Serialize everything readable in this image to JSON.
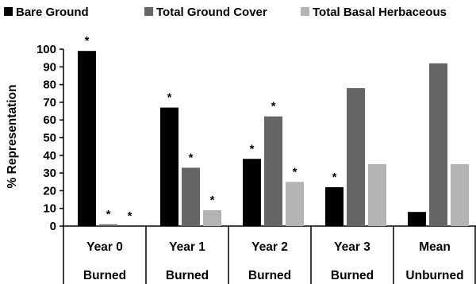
{
  "chart_data": {
    "type": "bar",
    "title": "",
    "xlabel": "",
    "ylabel": "% Representation",
    "ylim": [
      0,
      100
    ],
    "yticks": [
      0,
      10,
      20,
      30,
      40,
      50,
      60,
      70,
      80,
      90,
      100
    ],
    "grid": false,
    "legend_position": "top",
    "categories": [
      [
        "Year 0",
        "Burned"
      ],
      [
        "Year 1",
        "Burned"
      ],
      [
        "Year 2",
        "Burned"
      ],
      [
        "Year 3",
        "Burned"
      ],
      [
        "Mean",
        "Unburned"
      ]
    ],
    "series": [
      {
        "name": "Bare Ground",
        "color": "#000000",
        "values": [
          99,
          67,
          38,
          22,
          8
        ],
        "significant": [
          true,
          true,
          true,
          true,
          false
        ]
      },
      {
        "name": "Total Ground Cover",
        "color": "#666666",
        "values": [
          1,
          33,
          62,
          78,
          92
        ],
        "significant": [
          true,
          true,
          true,
          false,
          false
        ]
      },
      {
        "name": "Total Basal Herbaceous",
        "color": "#b3b3b3",
        "values": [
          0,
          9,
          25,
          35,
          35
        ],
        "significant": [
          true,
          true,
          true,
          false,
          false
        ]
      }
    ],
    "significance_marker": "*"
  }
}
